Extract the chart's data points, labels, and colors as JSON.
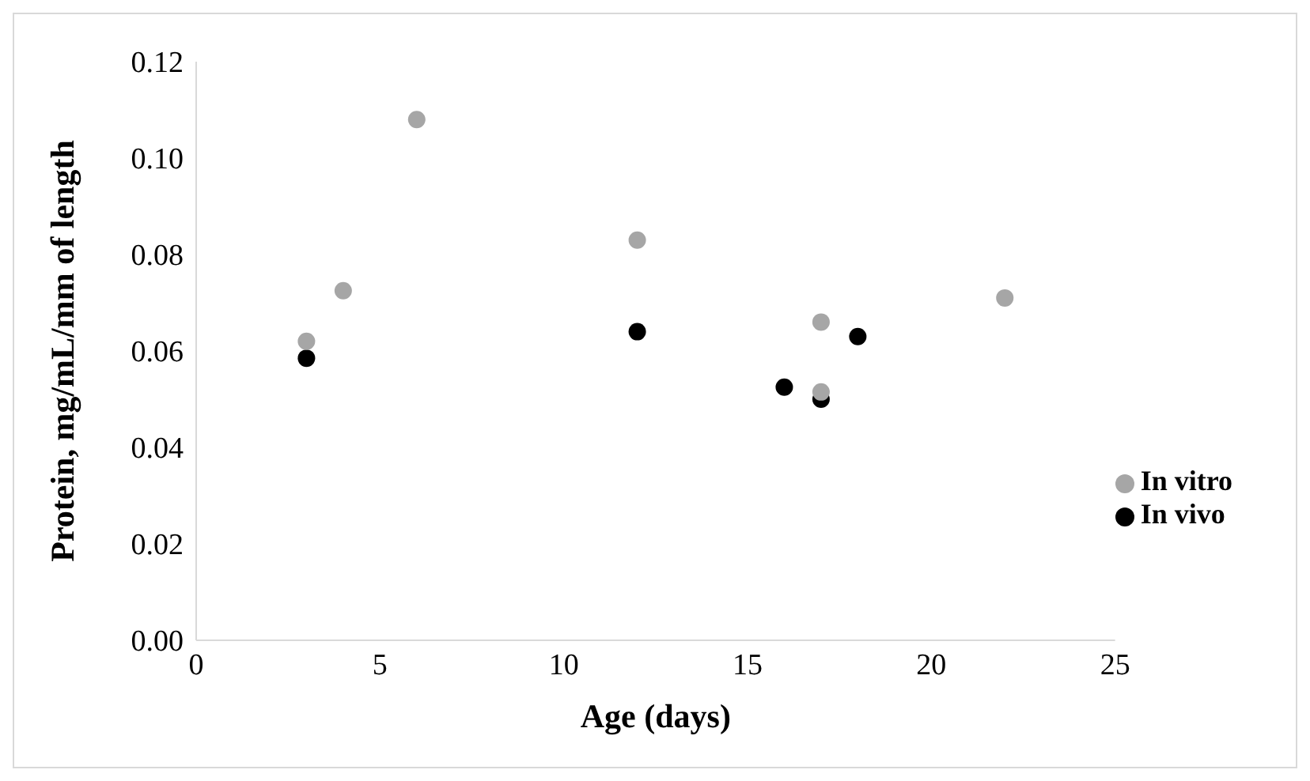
{
  "chart_data": {
    "type": "scatter",
    "xlabel": "Age (days)",
    "ylabel": "Protein, mg/mL/mm of length",
    "series": [
      {
        "name": "In vivo",
        "color": "#000000",
        "x": [
          3,
          12,
          16,
          17,
          18
        ],
        "values": [
          0.0585,
          0.064,
          0.0525,
          0.05,
          0.063
        ]
      },
      {
        "name": "In vitro",
        "color": "#a6a6a6",
        "x": [
          3,
          4,
          6,
          12,
          17,
          17,
          22
        ],
        "values": [
          0.062,
          0.0725,
          0.108,
          0.083,
          0.066,
          0.0515,
          0.071
        ]
      }
    ],
    "xlim": [
      0,
      25
    ],
    "xticks": [
      0,
      5,
      10,
      15,
      20,
      25
    ],
    "ylim": [
      0,
      0.12
    ],
    "yticks": [
      {
        "value": 0,
        "label": "0.00"
      },
      {
        "value": 0.02,
        "label": "0.02"
      },
      {
        "value": 0.04,
        "label": "0.04"
      },
      {
        "value": 0.06,
        "label": "0.06"
      },
      {
        "value": 0.08,
        "label": "0.08"
      },
      {
        "value": 0.1,
        "label": "0.10"
      },
      {
        "value": 0.12,
        "label": "0.12"
      }
    ],
    "grid": false,
    "legend": "right",
    "marker": "circle"
  }
}
